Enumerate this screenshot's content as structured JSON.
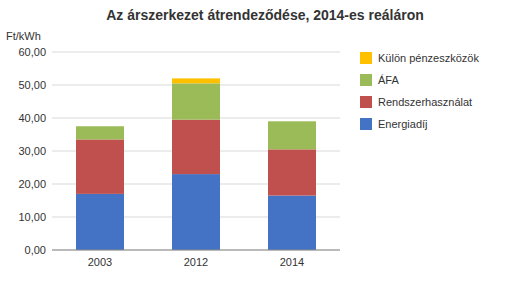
{
  "chart_data": {
    "type": "bar",
    "stacked": true,
    "title": "Az árszerkezet átrendeződése, 2014-es reáláron",
    "y_label": "Ft/kWh",
    "categories": [
      "2003",
      "2012",
      "2014"
    ],
    "series": [
      {
        "name": "Energiadíj",
        "color": "#4472C4",
        "values": [
          17.0,
          23.0,
          16.5
        ]
      },
      {
        "name": "Rendszerhasználat",
        "color": "#C0504D",
        "values": [
          16.5,
          16.5,
          14.0
        ]
      },
      {
        "name": "ÁFA",
        "color": "#9BBB59",
        "values": [
          4.0,
          11.0,
          8.5
        ]
      },
      {
        "name": "Külön pénzeszközök",
        "color": "#FFC000",
        "values": [
          0.0,
          1.5,
          0.0
        ]
      }
    ],
    "ylim": [
      0,
      60
    ],
    "yticks": [
      {
        "value": 0,
        "label": "0,00"
      },
      {
        "value": 10,
        "label": "10,00"
      },
      {
        "value": 20,
        "label": "20,00"
      },
      {
        "value": 30,
        "label": "30,00"
      },
      {
        "value": 40,
        "label": "40,00"
      },
      {
        "value": 50,
        "label": "50,00"
      },
      {
        "value": 60,
        "label": "60,00"
      }
    ],
    "grid": true,
    "legend": "right"
  }
}
